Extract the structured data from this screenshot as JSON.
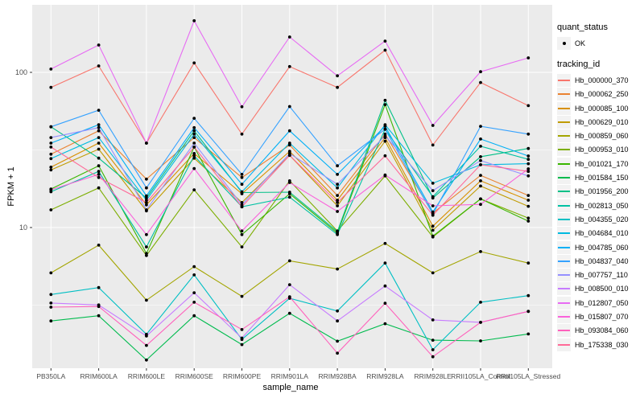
{
  "chart_data": {
    "type": "line",
    "title": "",
    "xlabel": "sample_name",
    "ylabel": "FPKM + 1",
    "y_scale": "log10",
    "y_ticks": [
      100,
      10
    ],
    "y_minor_ticks": [
      31.623,
      3.162
    ],
    "ylim": [
      1.25,
      265
    ],
    "grid": "on",
    "legend_position": "right",
    "x_categories": [
      "PB350LA",
      "RRIM600LA",
      "RRIM600LE",
      "RRIM600SE",
      "RRIM600PE",
      "RRIM901LA",
      "RRIM928BA",
      "RRIM928LA",
      "RRIM928LE",
      "RRII105LA_Control",
      "RRII105LA_Stressed"
    ],
    "series": [
      {
        "name": "Hb_000000_370",
        "color": "#F8766D",
        "values": [
          80,
          110,
          35,
          115,
          40,
          109,
          80,
          139,
          34,
          86,
          61
        ]
      },
      {
        "name": "Hb_000062_250",
        "color": "#EA8331",
        "values": [
          29.7,
          42,
          20.5,
          38,
          21,
          34,
          16.1,
          40,
          12.4,
          21.7,
          16.1
        ]
      },
      {
        "name": "Hb_000085_100",
        "color": "#D89000",
        "values": [
          24.5,
          35,
          14,
          30,
          16.5,
          31,
          15,
          38,
          10.2,
          20,
          15
        ]
      },
      {
        "name": "Hb_000629_010",
        "color": "#C09B00",
        "values": [
          23.5,
          32,
          12.8,
          28,
          14.5,
          29.2,
          13.8,
          36,
          9.6,
          18.5,
          13.7
        ]
      },
      {
        "name": "Hb_000859_060",
        "color": "#A3A500",
        "values": [
          5.1,
          7.7,
          3.4,
          5.6,
          3.6,
          6.1,
          5.4,
          7.9,
          5.1,
          7.0,
          5.9
        ]
      },
      {
        "name": "Hb_000953_010",
        "color": "#7CAE00",
        "values": [
          13,
          18,
          6.6,
          17.5,
          7.5,
          20,
          9.5,
          21.5,
          8.7,
          15.3,
          11.5
        ]
      },
      {
        "name": "Hb_001021_170",
        "color": "#39B600",
        "values": [
          17.7,
          25,
          6.8,
          33,
          9.0,
          16.5,
          9.2,
          62,
          8.8,
          15.3,
          11.0
        ]
      },
      {
        "name": "Hb_001584_150",
        "color": "#00BB4E",
        "values": [
          2.5,
          2.7,
          1.4,
          2.7,
          1.76,
          2.8,
          1.85,
          2.4,
          1.88,
          1.86,
          2.06
        ]
      },
      {
        "name": "Hb_001956_200",
        "color": "#00C087",
        "values": [
          44.6,
          28,
          15.5,
          42,
          16.8,
          16.9,
          9.4,
          66,
          15.5,
          28.6,
          32.3
        ]
      },
      {
        "name": "Hb_002813_050",
        "color": "#00C1A3",
        "values": [
          17,
          23,
          7.5,
          29,
          13.6,
          15.7,
          9.0,
          43,
          15.8,
          33.4,
          27.5
        ]
      },
      {
        "name": "Hb_004355_020",
        "color": "#00BFC4",
        "values": [
          3.7,
          4.1,
          2.05,
          4.95,
          1.9,
          3.5,
          2.9,
          5.9,
          1.63,
          3.3,
          3.64
        ]
      },
      {
        "name": "Hb_004684_010",
        "color": "#00BAE0",
        "values": [
          27.8,
          38,
          15,
          40,
          17,
          35,
          18,
          46,
          19.3,
          25.4,
          25.8
        ]
      },
      {
        "name": "Hb_004785_060",
        "color": "#00B0F6",
        "values": [
          35,
          46,
          16,
          44,
          19,
          42,
          22,
          45,
          12.6,
          37.2,
          28.9
        ]
      },
      {
        "name": "Hb_004837_040",
        "color": "#35A2FF",
        "values": [
          44.6,
          57,
          18,
          50.6,
          22,
          60.2,
          25,
          43,
          12.2,
          44.9,
          40
        ]
      },
      {
        "name": "Hb_007757_110",
        "color": "#9590FF",
        "values": [
          38,
          44,
          13,
          35,
          14,
          30,
          19,
          39,
          17.3,
          27,
          21.5
        ]
      },
      {
        "name": "Hb_008500_010",
        "color": "#C77CFF",
        "values": [
          3.26,
          3.17,
          2.0,
          3.8,
          1.94,
          4.28,
          2.5,
          4.2,
          2.54,
          2.45,
          2.88
        ]
      },
      {
        "name": "Hb_012807_050",
        "color": "#E76BF3",
        "values": [
          105,
          150,
          35,
          215,
          60,
          169,
          95,
          159,
          45.5,
          101,
          124
        ]
      },
      {
        "name": "Hb_015807_070",
        "color": "#FA62DB",
        "values": [
          17.5,
          22,
          9.0,
          24,
          9.5,
          19.5,
          12.7,
          21.8,
          13.8,
          14.1,
          23.9
        ]
      },
      {
        "name": "Hb_093084_060",
        "color": "#FF62BC",
        "values": [
          3.07,
          3.1,
          1.74,
          3.3,
          2.2,
          3.58,
          1.55,
          3.25,
          1.47,
          2.45,
          2.88
        ]
      },
      {
        "name": "Hb_175338_030",
        "color": "#FF6A98",
        "values": [
          33,
          21,
          14.5,
          33,
          13.6,
          29.2,
          14.5,
          29,
          12.0,
          25.4,
          23
        ]
      }
    ]
  },
  "legend": {
    "quant_status": {
      "title": "quant_status",
      "items": [
        {
          "label": "OK",
          "glyph": "black-point"
        }
      ]
    },
    "tracking_id": {
      "title": "tracking_id"
    }
  },
  "colors": {
    "panel_bg": "#EBEBEB",
    "grid_major": "#FFFFFF",
    "grid_minor": "#FFFFFF",
    "point": "#000000",
    "tick_label": "#4D4D4D",
    "tick_mark": "#333333",
    "legend_key_bg": "#F2F2F2"
  }
}
